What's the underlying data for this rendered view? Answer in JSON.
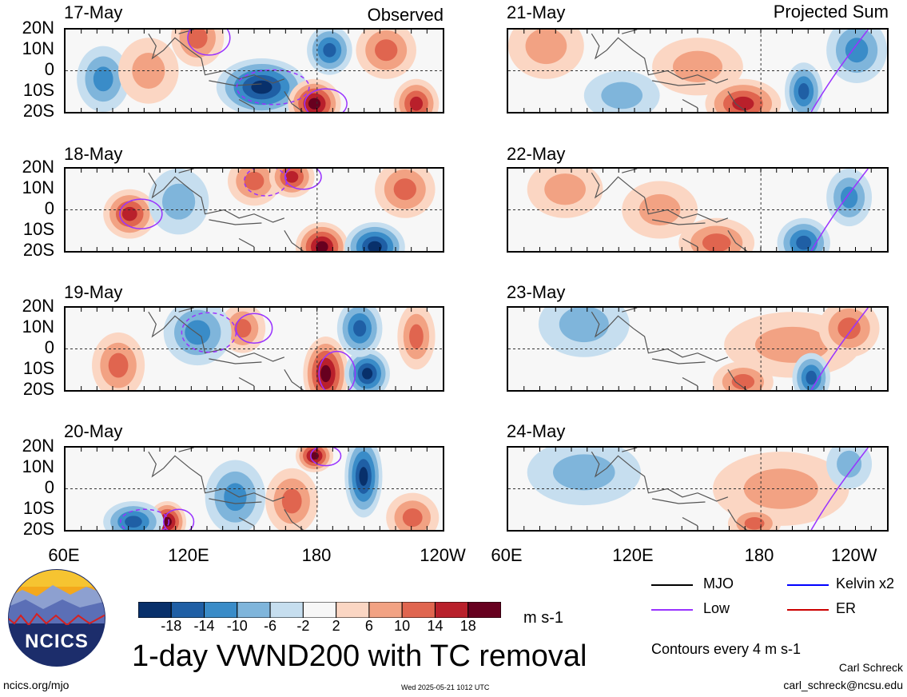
{
  "title": "1-day VWND200 with TC removal",
  "columns": {
    "left_tag": "Observed",
    "right_tag": "Projected Sum"
  },
  "panels_left": [
    {
      "date": "17-May"
    },
    {
      "date": "18-May"
    },
    {
      "date": "19-May"
    },
    {
      "date": "20-May"
    }
  ],
  "panels_right": [
    {
      "date": "21-May"
    },
    {
      "date": "22-May"
    },
    {
      "date": "23-May"
    },
    {
      "date": "24-May"
    }
  ],
  "lat_labels": [
    "20N",
    "10N",
    "0",
    "10S",
    "20S"
  ],
  "lon_labels": [
    "60E",
    "120E",
    "180",
    "120W"
  ],
  "colorbar": {
    "tick_labels": [
      "-18",
      "-14",
      "-10",
      "-6",
      "-2",
      "2",
      "6",
      "10",
      "14",
      "18"
    ],
    "colors": [
      "#08306b",
      "#1f5fa5",
      "#3a8cc8",
      "#7fb5db",
      "#c6deef",
      "#f7f7f7",
      "#fbd6c3",
      "#f2a283",
      "#e0654f",
      "#b9202b",
      "#67001f"
    ],
    "units": "m s-1"
  },
  "legend": {
    "items": [
      {
        "label": "MJO",
        "color": "#000000"
      },
      {
        "label": "Kelvin x2",
        "color": "#0000ff"
      },
      {
        "label": "Low",
        "color": "#9933ff"
      },
      {
        "label": "ER",
        "color": "#cc0000"
      }
    ],
    "contour_note": "Contours every 4 m s-1"
  },
  "logo": {
    "text": "NCICS"
  },
  "footer": {
    "url": "ncics.org/mjo",
    "timestamp": "Wed 2025-05-21 1012 UTC",
    "author": "Carl Schreck",
    "email": "carl_schreck@ncsu.edu"
  }
}
